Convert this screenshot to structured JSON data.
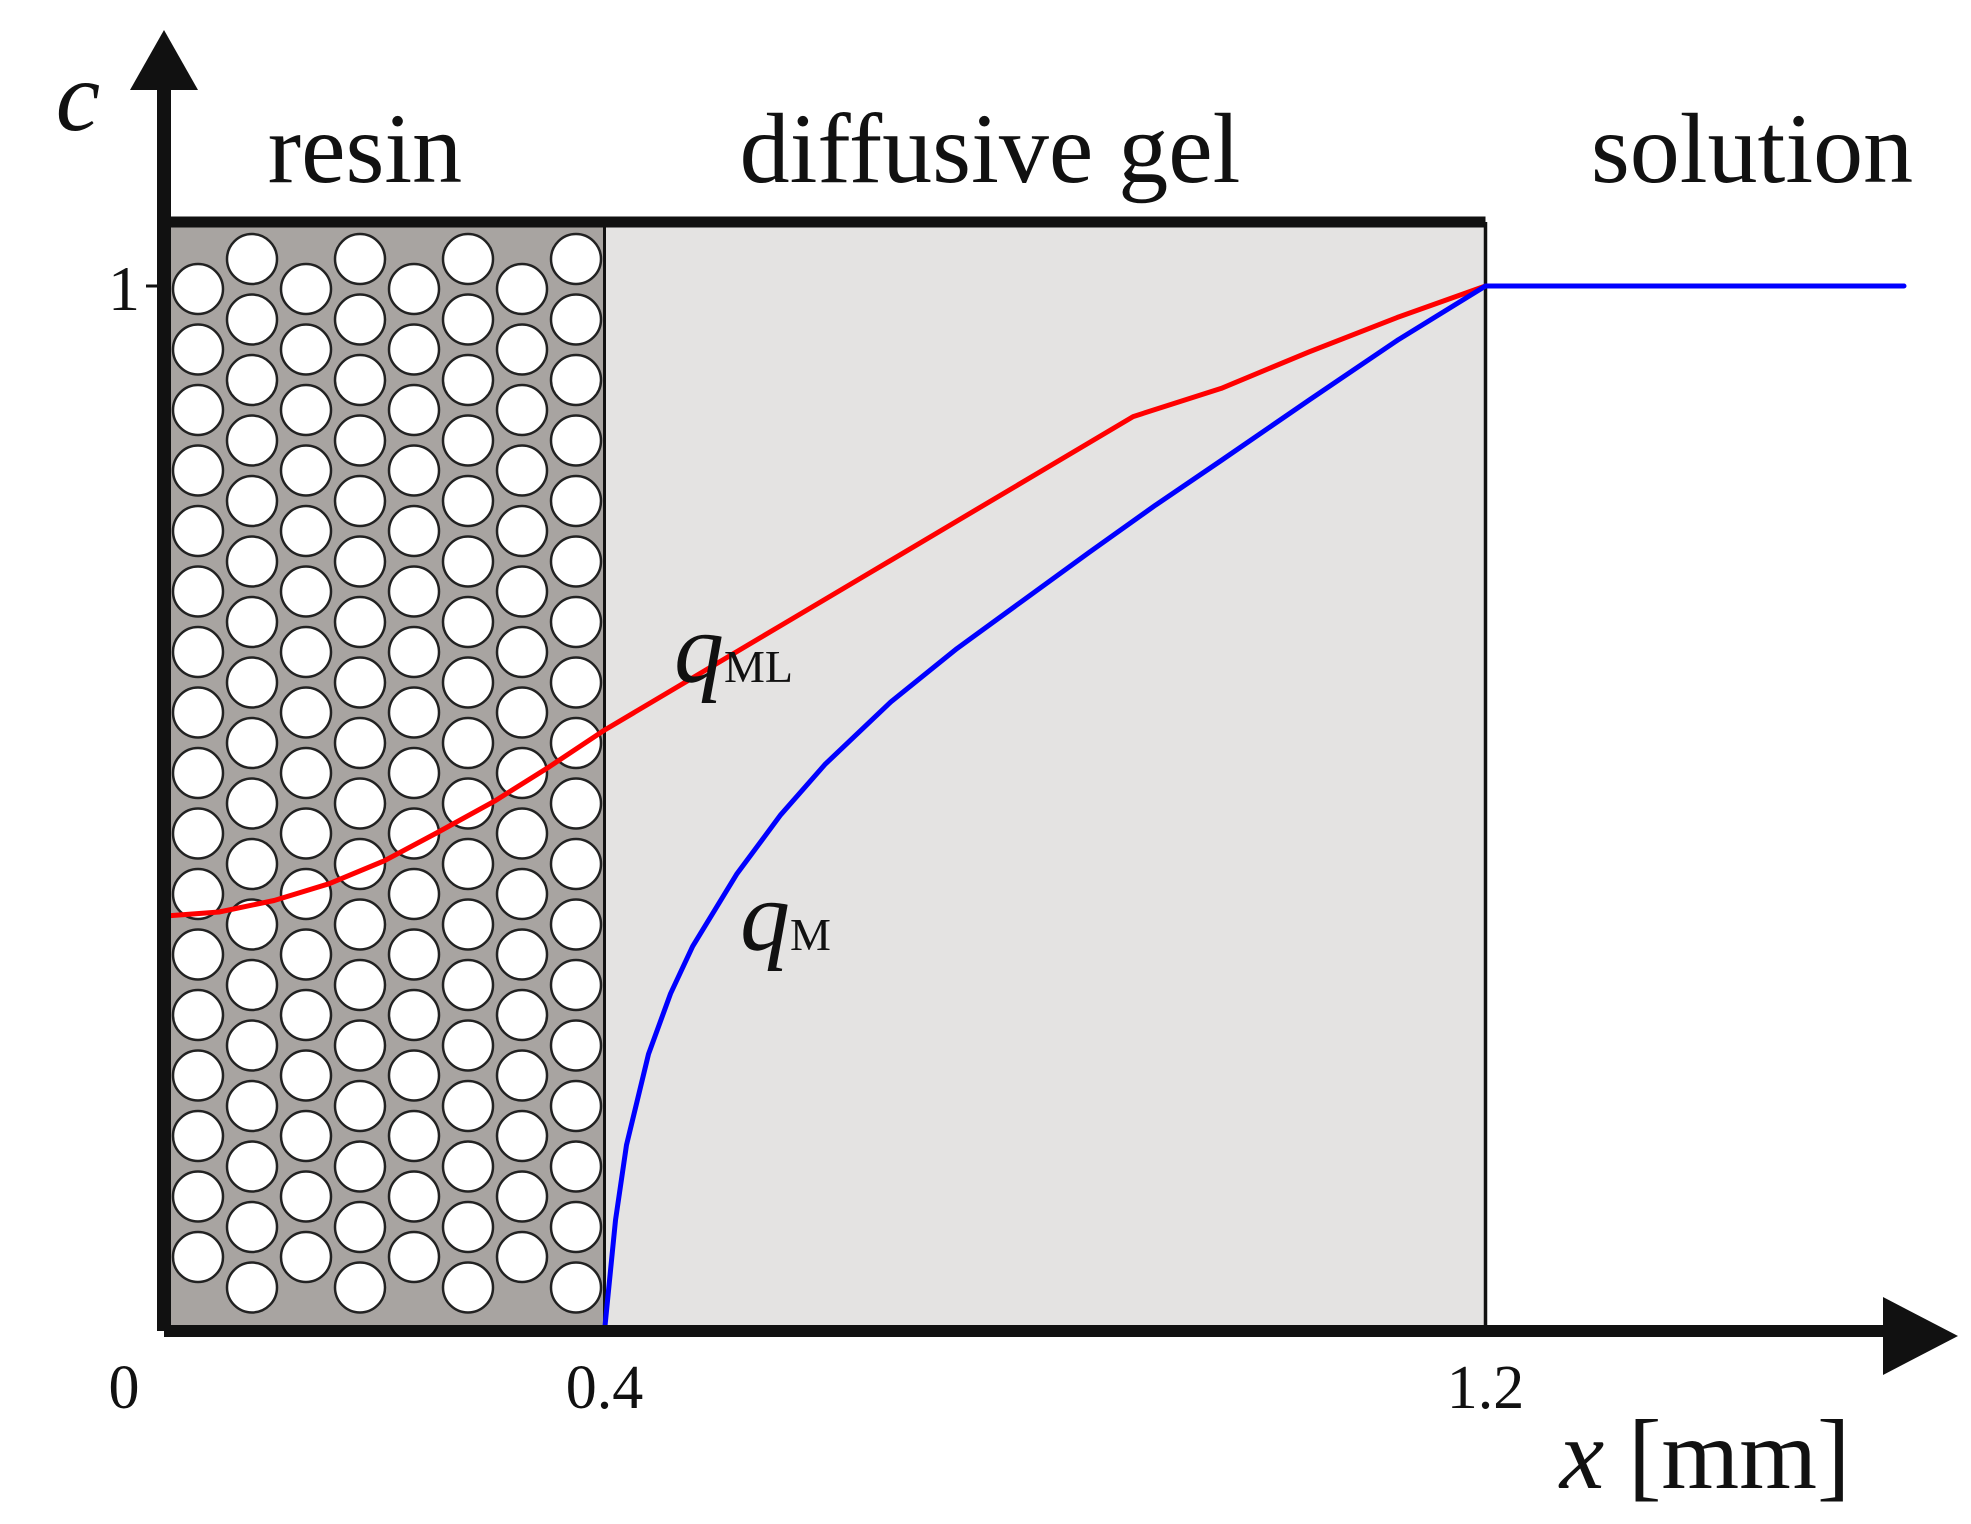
{
  "chart_data": {
    "type": "line",
    "ylabel": "c",
    "xlabel_var": "x",
    "xlabel_unit": "[mm]",
    "xticks": [
      {
        "value": 0,
        "label": "0"
      },
      {
        "value": 0.4,
        "label": "0.4"
      },
      {
        "value": 1.2,
        "label": "1.2"
      }
    ],
    "yticks": [
      {
        "value": 0,
        "label": ""
      },
      {
        "value": 1,
        "label": "1"
      }
    ],
    "xlim": [
      0,
      1.58
    ],
    "ylim": [
      0,
      1.27
    ],
    "regions": [
      {
        "label": "resin",
        "x_from": 0,
        "x_to": 0.4
      },
      {
        "label": "diffusive gel",
        "x_from": 0.4,
        "x_to": 1.2
      },
      {
        "label": "solution",
        "x_from": 1.2,
        "x_to": 1.58
      }
    ],
    "colors": {
      "resin_fill": "#a8a4a1",
      "gel_fill": "#e4e3e2",
      "q_ML": "#ff0000",
      "q_M": "#0000ff"
    },
    "series": [
      {
        "name": "q",
        "subscript": "ML",
        "color": "#ff0000",
        "points": [
          [
            0.0,
            0.397
          ],
          [
            0.05,
            0.401
          ],
          [
            0.1,
            0.412
          ],
          [
            0.15,
            0.428
          ],
          [
            0.2,
            0.45
          ],
          [
            0.25,
            0.478
          ],
          [
            0.3,
            0.507
          ],
          [
            0.35,
            0.54
          ],
          [
            0.4,
            0.575
          ],
          [
            0.48,
            0.625
          ],
          [
            0.56,
            0.675
          ],
          [
            0.64,
            0.725
          ],
          [
            0.72,
            0.775
          ],
          [
            0.8,
            0.825
          ],
          [
            0.88,
            0.875
          ],
          [
            0.96,
            0.902
          ],
          [
            1.04,
            0.937
          ],
          [
            1.12,
            0.97
          ],
          [
            1.2,
            1.0
          ]
        ]
      },
      {
        "name": "q",
        "subscript": "M",
        "color": "#0000ff",
        "points": [
          [
            0.4,
            0.0
          ],
          [
            0.41,
            0.106
          ],
          [
            0.42,
            0.178
          ],
          [
            0.44,
            0.265
          ],
          [
            0.46,
            0.323
          ],
          [
            0.48,
            0.368
          ],
          [
            0.52,
            0.437
          ],
          [
            0.56,
            0.494
          ],
          [
            0.6,
            0.542
          ],
          [
            0.66,
            0.602
          ],
          [
            0.72,
            0.653
          ],
          [
            0.78,
            0.699
          ],
          [
            0.84,
            0.745
          ],
          [
            0.9,
            0.79
          ],
          [
            0.96,
            0.833
          ],
          [
            1.04,
            0.891
          ],
          [
            1.12,
            0.948
          ],
          [
            1.2,
            1.0
          ],
          [
            1.58,
            1.0
          ]
        ]
      }
    ]
  }
}
